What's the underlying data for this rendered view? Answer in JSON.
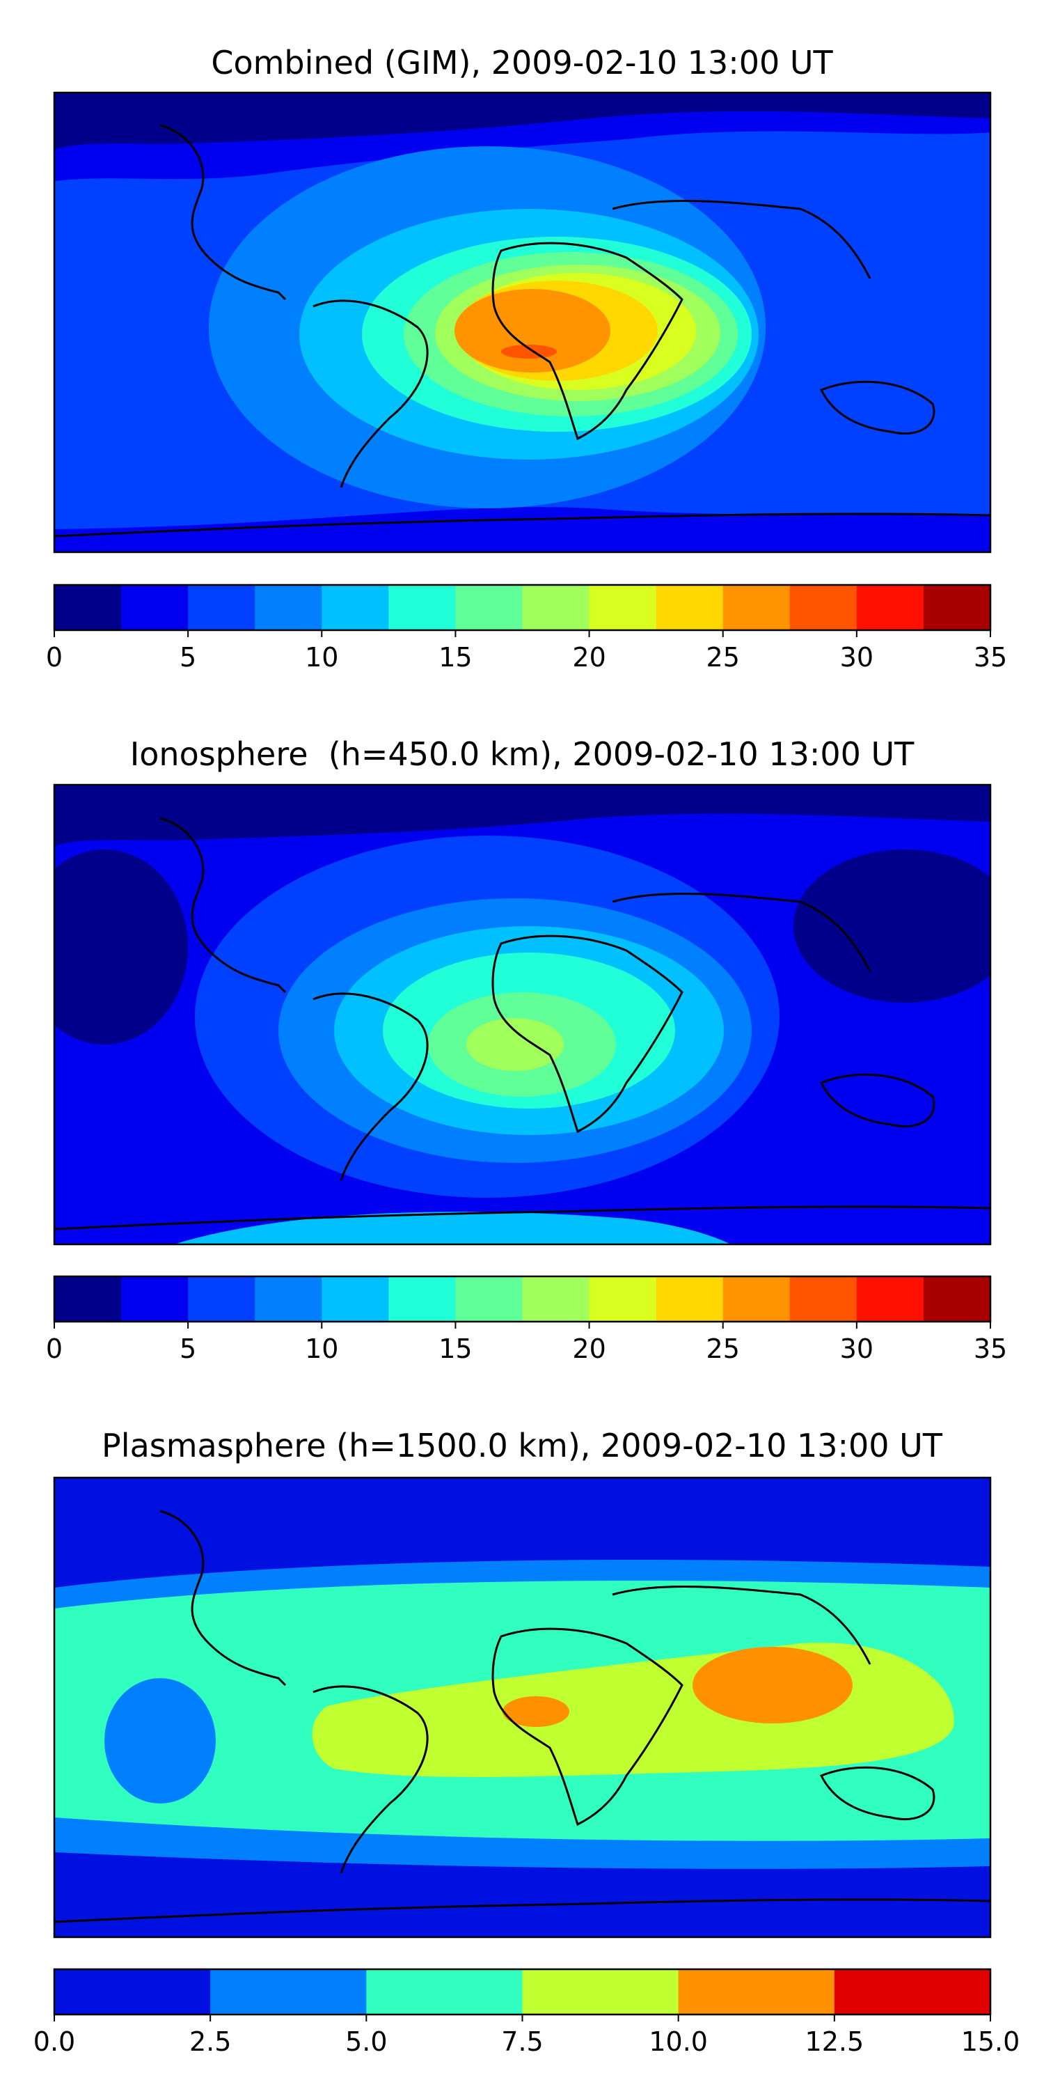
{
  "panels": [
    {
      "title": "Combined (GIM), 2009-02-10 13:00 UT",
      "colorbar": {
        "ticks": [
          "0",
          "5",
          "10",
          "15",
          "20",
          "25",
          "30",
          "35"
        ],
        "range": [
          0,
          35
        ],
        "colors": [
          "#00008b",
          "#0000f0",
          "#0040ff",
          "#0080ff",
          "#00c0ff",
          "#20ffd8",
          "#60ff98",
          "#a0ff5a",
          "#d8ff20",
          "#ffd800",
          "#ff9400",
          "#ff5400",
          "#ff1000",
          "#a80000"
        ]
      }
    },
    {
      "title": "Ionosphere  (h=450.0 km), 2009-02-10 13:00 UT",
      "colorbar": {
        "ticks": [
          "0",
          "5",
          "10",
          "15",
          "20",
          "25",
          "30",
          "35"
        ],
        "range": [
          0,
          35
        ],
        "colors": [
          "#00008b",
          "#0000f0",
          "#0040ff",
          "#0080ff",
          "#00c0ff",
          "#20ffd8",
          "#60ff98",
          "#a0ff5a",
          "#d8ff20",
          "#ffd800",
          "#ff9400",
          "#ff5400",
          "#ff1000",
          "#a80000"
        ]
      }
    },
    {
      "title": "Plasmasphere (h=1500.0 km), 2009-02-10 13:00 UT",
      "colorbar": {
        "ticks": [
          "0.0",
          "2.5",
          "5.0",
          "7.5",
          "10.0",
          "12.5",
          "15.0"
        ],
        "range": [
          0,
          15
        ],
        "colors": [
          "#0010e0",
          "#0080ff",
          "#30ffc0",
          "#c0ff30",
          "#ff9000",
          "#e00000"
        ]
      }
    }
  ]
}
